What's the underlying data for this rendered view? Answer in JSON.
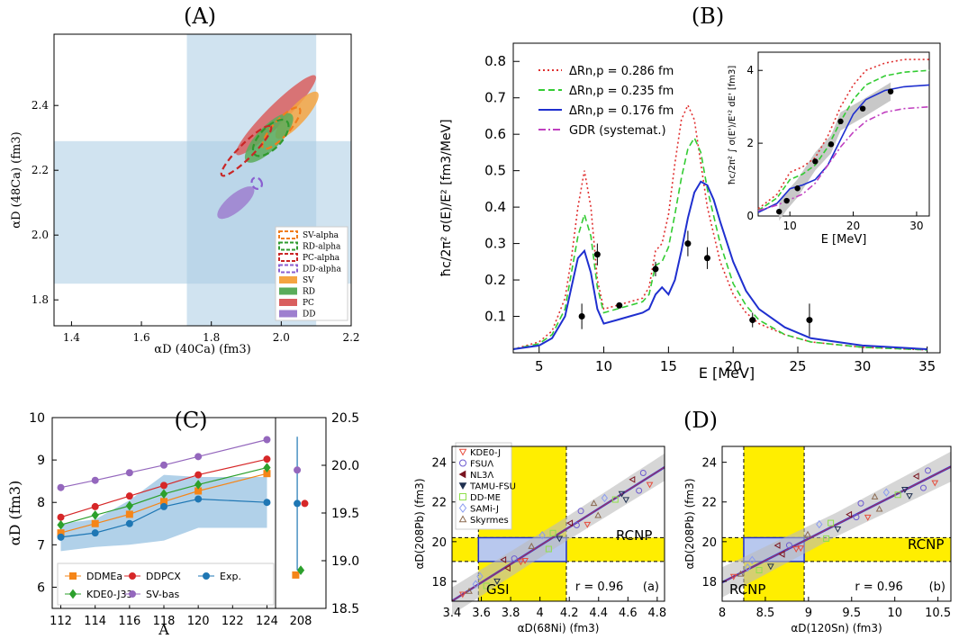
{
  "figure": {
    "panel_labels": [
      "(A)",
      "(B)",
      "(C)",
      "(D)"
    ]
  },
  "chart_data": [
    {
      "id": "A",
      "type": "scatter",
      "title": "(A)",
      "xlabel": "αD (40Ca) (fm3)",
      "ylabel": "αD (48Ca) (fm3)",
      "xlim": [
        1.35,
        2.2
      ],
      "ylim": [
        1.72,
        2.62
      ],
      "xticks": [
        1.4,
        1.6,
        1.8,
        2.0,
        2.2
      ],
      "yticks": [
        1.8,
        2.0,
        2.2,
        2.4
      ],
      "bands": {
        "x_range": [
          1.73,
          2.1
        ],
        "y_range": [
          1.85,
          2.29
        ],
        "color": "#a9cce3"
      },
      "legend_position": "lower-right",
      "legend": [
        "SV-alpha",
        "RD-alpha",
        "PC-alpha",
        "DD-alpha",
        "SV",
        "RD",
        "PC",
        "DD"
      ],
      "ellipses": [
        {
          "name": "PC",
          "cx": 1.985,
          "cy": 2.37,
          "rx": 0.29,
          "ry": 0.035,
          "angle": 45,
          "color": "#d95f5f",
          "filled": true
        },
        {
          "name": "SV",
          "cx": 2.045,
          "cy": 2.37,
          "rx": 0.16,
          "ry": 0.03,
          "angle": 48,
          "color": "#f4a442",
          "filled": true
        },
        {
          "name": "RD",
          "cx": 1.965,
          "cy": 2.3,
          "rx": 0.17,
          "ry": 0.045,
          "angle": 46,
          "color": "#5aac5a",
          "filled": true
        },
        {
          "name": "DD",
          "cx": 1.87,
          "cy": 2.1,
          "rx": 0.12,
          "ry": 0.028,
          "angle": 40,
          "color": "#9e7fcf",
          "filled": true
        },
        {
          "name": "SV-alpha",
          "cx": 2.0,
          "cy": 2.33,
          "rx": 0.14,
          "ry": 0.025,
          "angle": 48,
          "color": "#f07d1d",
          "filled": false
        },
        {
          "name": "RD-alpha",
          "cx": 1.97,
          "cy": 2.3,
          "rx": 0.12,
          "ry": 0.04,
          "angle": 46,
          "color": "#2e9a2e",
          "filled": false
        },
        {
          "name": "PC-alpha",
          "cx": 1.9,
          "cy": 2.26,
          "rx": 0.18,
          "ry": 0.02,
          "angle": 45,
          "color": "#c92626",
          "filled": false
        },
        {
          "name": "DD-alpha",
          "cx": 1.93,
          "cy": 2.16,
          "rx": 0.025,
          "ry": 0.013,
          "angle": 30,
          "color": "#8a5fd0",
          "filled": false
        }
      ]
    },
    {
      "id": "B",
      "type": "line",
      "title": "(B)",
      "xlabel": "E [MeV]",
      "ylabel": "ħc/2π² σ(E)/E² [fm3/MeV]",
      "xlim": [
        3,
        36
      ],
      "ylim": [
        0,
        0.85
      ],
      "xticks": [
        5,
        10,
        15,
        20,
        25,
        30,
        35
      ],
      "yticks": [
        0.1,
        0.2,
        0.3,
        0.4,
        0.5,
        0.6,
        0.7,
        0.8
      ],
      "legend_position": "top-left",
      "series": [
        {
          "name": "ΔRn,p = 0.286 fm",
          "color": "#e03030",
          "style": "dotted",
          "x": [
            3,
            5,
            6,
            7,
            7.5,
            8,
            8.5,
            9,
            9.5,
            10,
            11,
            12,
            13,
            13.5,
            14,
            14.5,
            15,
            15.5,
            16,
            16.5,
            17,
            17.5,
            18,
            19,
            20,
            21,
            22,
            24,
            26,
            30,
            35
          ],
          "y": [
            0.01,
            0.03,
            0.06,
            0.15,
            0.26,
            0.4,
            0.5,
            0.4,
            0.2,
            0.12,
            0.13,
            0.14,
            0.15,
            0.18,
            0.28,
            0.3,
            0.38,
            0.52,
            0.64,
            0.68,
            0.64,
            0.52,
            0.4,
            0.25,
            0.16,
            0.11,
            0.08,
            0.05,
            0.03,
            0.015,
            0.008
          ]
        },
        {
          "name": "ΔRn,p = 0.235 fm",
          "color": "#33cc33",
          "style": "dashed",
          "x": [
            3,
            5,
            6,
            7,
            7.5,
            8,
            8.5,
            9,
            9.5,
            10,
            11,
            12,
            13,
            13.5,
            14,
            14.5,
            15,
            15.5,
            16,
            16.5,
            17,
            17.5,
            18,
            19,
            20,
            21,
            22,
            24,
            26,
            30,
            35
          ],
          "y": [
            0.01,
            0.025,
            0.05,
            0.12,
            0.22,
            0.32,
            0.38,
            0.32,
            0.18,
            0.11,
            0.12,
            0.13,
            0.14,
            0.16,
            0.24,
            0.25,
            0.29,
            0.38,
            0.48,
            0.56,
            0.59,
            0.55,
            0.45,
            0.3,
            0.19,
            0.13,
            0.09,
            0.05,
            0.03,
            0.015,
            0.008
          ]
        },
        {
          "name": "ΔRn,p = 0.176 fm",
          "color": "#1f2fcf",
          "style": "solid",
          "x": [
            3,
            5,
            6,
            7,
            7.5,
            8,
            8.5,
            9,
            9.5,
            10,
            11,
            12,
            13,
            13.5,
            14,
            14.5,
            15,
            15.5,
            16,
            16.5,
            17,
            17.5,
            18,
            18.5,
            19,
            20,
            21,
            22,
            24,
            26,
            30,
            35
          ],
          "y": [
            0.01,
            0.02,
            0.04,
            0.1,
            0.18,
            0.26,
            0.28,
            0.22,
            0.12,
            0.08,
            0.09,
            0.1,
            0.11,
            0.12,
            0.16,
            0.18,
            0.16,
            0.2,
            0.28,
            0.37,
            0.44,
            0.47,
            0.46,
            0.42,
            0.36,
            0.25,
            0.17,
            0.12,
            0.07,
            0.04,
            0.02,
            0.01
          ]
        }
      ],
      "points": {
        "name": "data",
        "x": [
          8.3,
          9.5,
          11.2,
          14.0,
          16.5,
          18.0,
          21.5,
          25.9
        ],
        "y": [
          0.1,
          0.27,
          0.13,
          0.23,
          0.3,
          0.26,
          0.09,
          0.09
        ],
        "err": [
          0.035,
          0.03,
          0.008,
          0.02,
          0.035,
          0.03,
          0.02,
          0.045
        ]
      },
      "legend_extra": "GDR (systemat.)",
      "inset": {
        "xlabel": "E [MeV]",
        "ylabel": "ħc/2π² ∫ σ(E')/E'² dE' [fm3]",
        "xlim": [
          5,
          32
        ],
        "ylim": [
          0,
          4.5
        ],
        "xticks": [
          10,
          20,
          30
        ],
        "yticks": [
          0,
          2,
          4
        ],
        "points": {
          "x": [
            8.3,
            9.5,
            11.2,
            14.0,
            16.5,
            18.0,
            21.5,
            25.9
          ],
          "y": [
            0.12,
            0.42,
            0.76,
            1.5,
            1.97,
            2.6,
            2.95,
            3.42
          ]
        }
      }
    },
    {
      "id": "C",
      "type": "line",
      "title": "(C)",
      "xlabel": "A",
      "ylabel": "αD (fm3)",
      "xlim": [
        111.5,
        124.5
      ],
      "ylim": [
        5.5,
        10
      ],
      "xticks": [
        112,
        114,
        116,
        118,
        120,
        122,
        124
      ],
      "yticks": [
        6,
        7,
        8,
        9,
        10
      ],
      "right_axis": {
        "ylim": [
          18.5,
          20.5
        ],
        "yticks": [
          18.5,
          19.0,
          19.5,
          20.0,
          20.5
        ],
        "xtick": "208"
      },
      "legend_position": "lower-center",
      "series": [
        {
          "name": "DDMEa",
          "color": "#f58518",
          "marker": "square",
          "x": [
            112,
            114,
            116,
            118,
            120,
            124
          ],
          "y": [
            7.28,
            7.5,
            7.72,
            8.02,
            8.27,
            8.68
          ]
        },
        {
          "name": "DDPCX",
          "color": "#d62728",
          "marker": "circle",
          "x": [
            112,
            114,
            116,
            118,
            120,
            124
          ],
          "y": [
            7.65,
            7.9,
            8.15,
            8.4,
            8.65,
            9.02
          ]
        },
        {
          "name": "Exp.",
          "color": "#1f77b4",
          "marker": "circle",
          "x": [
            112,
            114,
            116,
            118,
            120,
            124
          ],
          "y": [
            7.18,
            7.28,
            7.5,
            7.9,
            8.08,
            8.0
          ]
        },
        {
          "name": "KDE0-J33",
          "color": "#2ca02c",
          "marker": "diamond",
          "x": [
            112,
            114,
            116,
            118,
            120,
            124
          ],
          "y": [
            7.47,
            7.7,
            7.92,
            8.2,
            8.42,
            8.82
          ]
        },
        {
          "name": "SV-bas",
          "color": "#9467bd",
          "marker": "circle",
          "x": [
            112,
            114,
            116,
            118,
            120,
            124
          ],
          "y": [
            8.35,
            8.52,
            8.7,
            8.88,
            9.08,
            9.48
          ]
        }
      ],
      "band": {
        "x": [
          112,
          114,
          116,
          118,
          120,
          124
        ],
        "lower": [
          6.85,
          6.95,
          7.0,
          7.1,
          7.4,
          7.4
        ],
        "upper": [
          7.5,
          7.6,
          8.05,
          8.65,
          8.6,
          8.6
        ]
      },
      "pb208": [
        {
          "name": "DDMEa",
          "value": 18.85
        },
        {
          "name": "KDE0-J33",
          "value": 18.9
        },
        {
          "name": "DDPCX",
          "value": 19.6
        },
        {
          "name": "Exp.",
          "value": 19.6,
          "err_low": 18.9,
          "err_high": 20.3
        },
        {
          "name": "SV-bas",
          "value": 19.95
        }
      ]
    },
    {
      "id": "D-a",
      "type": "scatter",
      "title": "(D)",
      "panel_tag": "(a)",
      "xlabel": "αD(68Ni) (fm3)",
      "ylabel": "αD(208Pb) (fm3)",
      "xlim": [
        3.4,
        4.85
      ],
      "ylim": [
        17.0,
        24.8
      ],
      "xticks": [
        3.4,
        3.6,
        3.8,
        4.0,
        4.2,
        4.4,
        4.6,
        4.8
      ],
      "yticks": [
        18,
        20,
        22,
        24
      ],
      "correlation": "r = 0.96",
      "region_labels": [
        "GSI",
        "RCNP"
      ],
      "legend_position": "top-left",
      "legend": [
        "KDE0-J",
        "FSUΛ",
        "NL3Λ",
        "TAMU-FSU",
        "DD-ME",
        "SAMi-J",
        "Skyrmes"
      ],
      "fit": {
        "slope": 4.65,
        "intercept": 1.2
      }
    },
    {
      "id": "D-b",
      "type": "scatter",
      "panel_tag": "(b)",
      "xlabel": "αD(120Sn) (fm3)",
      "ylabel": "αD(208Pb) (fm3)",
      "xlim": [
        8.0,
        10.65
      ],
      "ylim": [
        17.0,
        24.8
      ],
      "xticks": [
        8,
        8.5,
        9,
        9.5,
        10,
        10.5
      ],
      "yticks": [
        18,
        20,
        22,
        24
      ],
      "correlation": "r = 0.96",
      "region_labels": [
        "RCNP",
        "RCNP"
      ],
      "fit": {
        "slope": 2.2,
        "intercept": 0.35
      }
    }
  ]
}
